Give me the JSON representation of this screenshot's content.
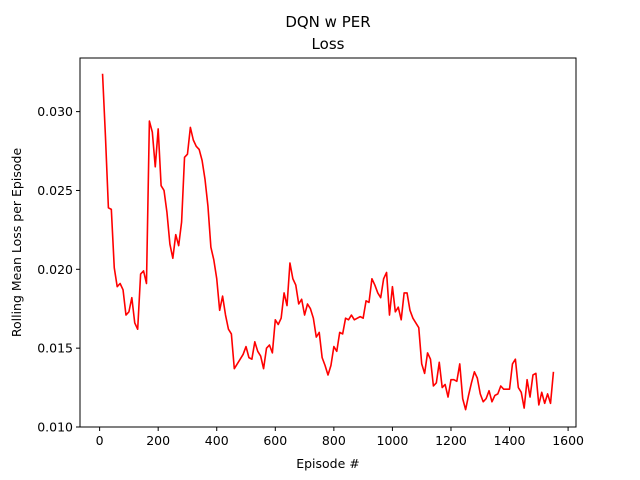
{
  "chart_data": {
    "type": "line",
    "title": "DQN w PER",
    "subtitle": "Loss",
    "xlabel": "Episode #",
    "ylabel": "Rolling Mean Loss per Episode",
    "xlim": [
      -67,
      1627
    ],
    "ylim": [
      0.01,
      0.0334
    ],
    "xticks": [
      0,
      200,
      400,
      600,
      800,
      1000,
      1200,
      1400,
      1600
    ],
    "yticks": [
      0.01,
      0.015,
      0.02,
      0.025,
      0.03
    ],
    "grid": false,
    "series": [
      {
        "color": "#ff0000",
        "x": [
          10,
          20,
          30,
          40,
          50,
          60,
          70,
          80,
          90,
          100,
          110,
          120,
          130,
          140,
          150,
          160,
          170,
          180,
          190,
          200,
          210,
          220,
          230,
          240,
          250,
          260,
          270,
          280,
          290,
          300,
          310,
          320,
          330,
          340,
          350,
          360,
          370,
          380,
          390,
          400,
          410,
          420,
          430,
          440,
          450,
          460,
          470,
          480,
          490,
          500,
          510,
          520,
          530,
          540,
          550,
          560,
          570,
          580,
          590,
          600,
          610,
          620,
          630,
          640,
          650,
          660,
          670,
          680,
          690,
          700,
          710,
          720,
          730,
          740,
          750,
          760,
          770,
          780,
          790,
          800,
          810,
          820,
          830,
          840,
          850,
          860,
          870,
          880,
          890,
          900,
          910,
          920,
          930,
          940,
          950,
          960,
          970,
          980,
          990,
          1000,
          1010,
          1020,
          1030,
          1040,
          1050,
          1060,
          1070,
          1080,
          1090,
          1100,
          1110,
          1120,
          1130,
          1140,
          1150,
          1160,
          1170,
          1180,
          1190,
          1200,
          1210,
          1220,
          1230,
          1240,
          1250,
          1260,
          1270,
          1280,
          1290,
          1300,
          1310,
          1320,
          1330,
          1340,
          1350,
          1360,
          1370,
          1380,
          1390,
          1400,
          1410,
          1420,
          1430,
          1440,
          1450,
          1460,
          1470,
          1480,
          1490,
          1500,
          1510,
          1520,
          1530,
          1540,
          1550
        ],
        "y": [
          0.0324,
          0.0284,
          0.0239,
          0.0238,
          0.0201,
          0.0189,
          0.0191,
          0.0187,
          0.0171,
          0.0173,
          0.0182,
          0.0166,
          0.0162,
          0.0197,
          0.0199,
          0.0191,
          0.0294,
          0.0287,
          0.0265,
          0.0289,
          0.0253,
          0.025,
          0.0236,
          0.0216,
          0.0207,
          0.0222,
          0.0215,
          0.023,
          0.0271,
          0.0273,
          0.029,
          0.0282,
          0.0278,
          0.0276,
          0.0269,
          0.0257,
          0.024,
          0.0214,
          0.0206,
          0.0194,
          0.0174,
          0.0183,
          0.0171,
          0.0162,
          0.0159,
          0.0137,
          0.014,
          0.0143,
          0.0146,
          0.0151,
          0.0144,
          0.0143,
          0.0154,
          0.0148,
          0.0145,
          0.0137,
          0.015,
          0.0152,
          0.0147,
          0.0168,
          0.0165,
          0.0169,
          0.0185,
          0.0177,
          0.0204,
          0.0194,
          0.019,
          0.0178,
          0.0181,
          0.0171,
          0.0178,
          0.0175,
          0.0169,
          0.0157,
          0.016,
          0.0144,
          0.0139,
          0.0133,
          0.0139,
          0.0151,
          0.0148,
          0.016,
          0.0159,
          0.0169,
          0.0168,
          0.0171,
          0.0168,
          0.0169,
          0.017,
          0.0169,
          0.018,
          0.0179,
          0.0194,
          0.019,
          0.0185,
          0.0182,
          0.0194,
          0.0198,
          0.0171,
          0.0189,
          0.0173,
          0.0176,
          0.0168,
          0.0185,
          0.0185,
          0.0174,
          0.0169,
          0.0166,
          0.0163,
          0.014,
          0.0134,
          0.0147,
          0.0143,
          0.0126,
          0.0128,
          0.0141,
          0.0125,
          0.0127,
          0.0119,
          0.013,
          0.013,
          0.0129,
          0.014,
          0.0118,
          0.0111,
          0.012,
          0.0128,
          0.0135,
          0.0131,
          0.0121,
          0.0116,
          0.0118,
          0.0123,
          0.0116,
          0.012,
          0.0121,
          0.0126,
          0.0124,
          0.0124,
          0.0124,
          0.014,
          0.0143,
          0.0125,
          0.0122,
          0.0112,
          0.013,
          0.0119,
          0.0133,
          0.0134,
          0.0114,
          0.0122,
          0.0115,
          0.0121,
          0.0115,
          0.0135
        ]
      }
    ]
  }
}
